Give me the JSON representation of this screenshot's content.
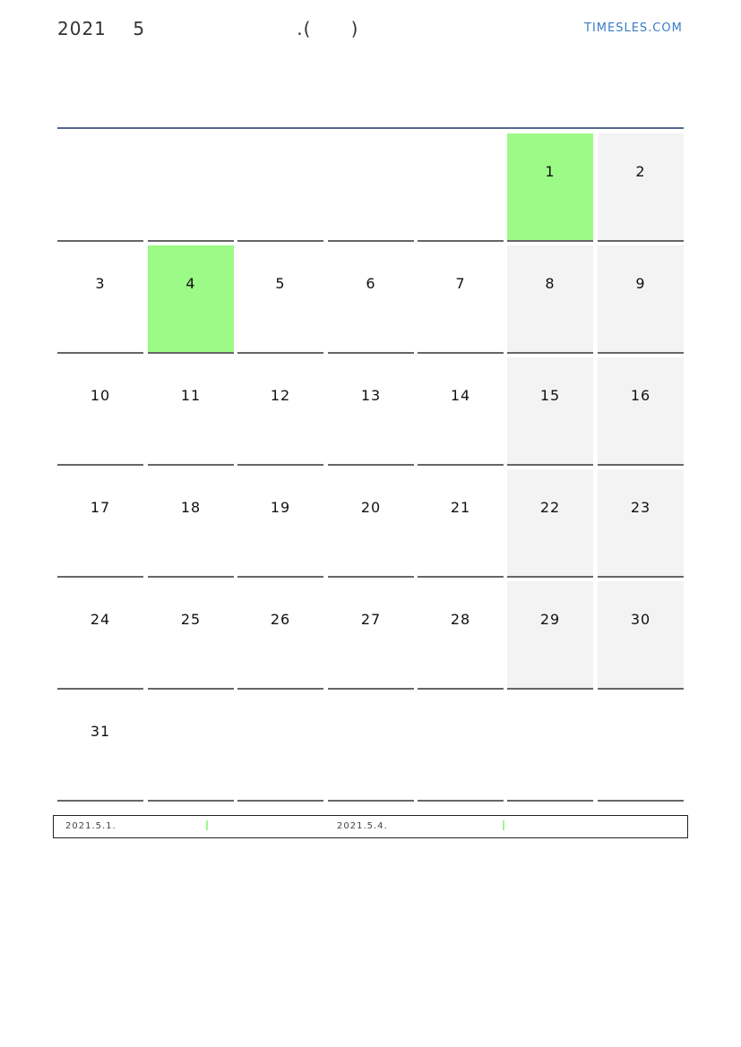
{
  "header": {
    "title": "2021    5                       .(      )",
    "logo": "TIMESLES.COM"
  },
  "colors": {
    "holiday": "#9cfa87",
    "weekend": "#f3f3f3",
    "rule": "#52688f"
  },
  "calendar": {
    "year": 2021,
    "month": 5,
    "first_weekday_index": 5,
    "days_in_month": 31,
    "holidays": [
      1,
      4
    ],
    "weekend_columns": [
      5,
      6
    ]
  },
  "notes": [
    {
      "date": "2021.5.1."
    },
    {
      "date": "2021.5.4."
    }
  ]
}
